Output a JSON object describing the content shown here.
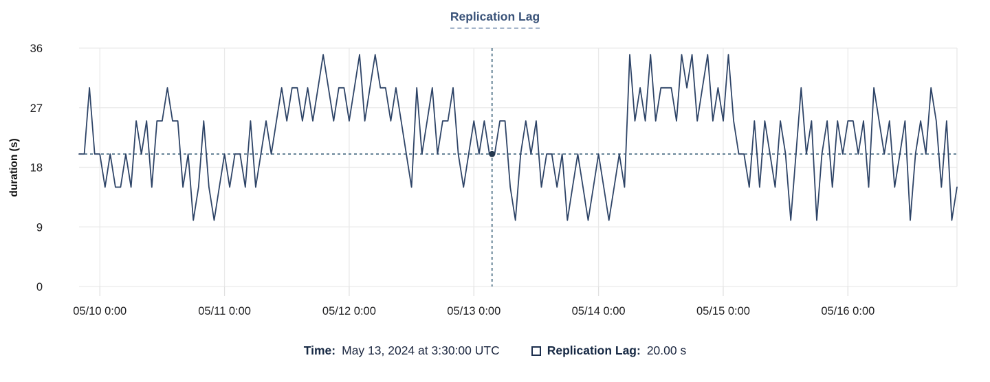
{
  "tooltip": {
    "time_label": "Time:",
    "time_value": "May 13, 2024 at 3:30:00 UTC",
    "series_label": "Replication Lag:",
    "series_value": "20.00 s"
  },
  "crosshair": {
    "hour_offset": 79.5,
    "value": 20
  },
  "colors": {
    "line": "#2e4467",
    "crosshair": "#3c627b",
    "dot": "#24384f",
    "grid": "#e9e9e9",
    "tick_stub": "#e0e0e0",
    "axis_text": "#1c1c1e",
    "title": "#3a5379",
    "legend_text": "#172944"
  },
  "chart_data": {
    "type": "line",
    "title": "Replication Lag",
    "xlabel": "",
    "ylabel": "duration (s)",
    "ylim": [
      0,
      36
    ],
    "y_ticks": [
      0,
      9,
      18,
      27,
      36
    ],
    "grid": true,
    "legend_position": "bottom",
    "x_start": "05/09 20:00",
    "x_interval_hours": 1,
    "x_ticks": [
      {
        "label": "05/10 0:00",
        "hour_offset": 4
      },
      {
        "label": "05/11 0:00",
        "hour_offset": 28
      },
      {
        "label": "05/12 0:00",
        "hour_offset": 52
      },
      {
        "label": "05/13 0:00",
        "hour_offset": 76
      },
      {
        "label": "05/14 0:00",
        "hour_offset": 100
      },
      {
        "label": "05/15 0:00",
        "hour_offset": 124
      },
      {
        "label": "05/16 0:00",
        "hour_offset": 148
      }
    ],
    "series": [
      {
        "name": "Replication Lag",
        "unit": "s",
        "values": [
          20,
          20,
          30,
          20,
          20,
          15,
          20,
          15,
          15,
          20,
          15,
          25,
          20,
          25,
          15,
          25,
          25,
          30,
          25,
          25,
          15,
          20,
          10,
          15,
          25,
          15,
          10,
          15,
          20,
          15,
          20,
          20,
          15,
          25,
          15,
          20,
          25,
          20,
          25,
          30,
          25,
          30,
          30,
          25,
          30,
          25,
          30,
          35,
          30,
          25,
          30,
          30,
          25,
          30,
          35,
          25,
          30,
          35,
          30,
          30,
          25,
          30,
          25,
          20,
          15,
          30,
          20,
          25,
          30,
          20,
          25,
          25,
          30,
          20,
          15,
          20,
          25,
          20,
          25,
          20,
          20,
          25,
          25,
          15,
          10,
          20,
          25,
          20,
          25,
          15,
          20,
          20,
          15,
          20,
          10,
          15,
          20,
          15,
          10,
          15,
          20,
          15,
          10,
          15,
          20,
          15,
          35,
          25,
          30,
          25,
          35,
          25,
          30,
          30,
          30,
          25,
          35,
          30,
          35,
          25,
          30,
          35,
          25,
          30,
          25,
          35,
          25,
          20,
          20,
          15,
          25,
          15,
          25,
          20,
          15,
          25,
          20,
          10,
          20,
          30,
          20,
          25,
          10,
          20,
          25,
          15,
          25,
          20,
          25,
          25,
          20,
          25,
          15,
          30,
          25,
          20,
          25,
          15,
          20,
          25,
          10,
          20,
          25,
          20,
          30,
          25,
          15,
          25,
          10,
          15
        ]
      }
    ],
    "hovered_point": {
      "time": "May 13, 2024 at 3:30:00 UTC",
      "value_s": 20.0
    }
  }
}
